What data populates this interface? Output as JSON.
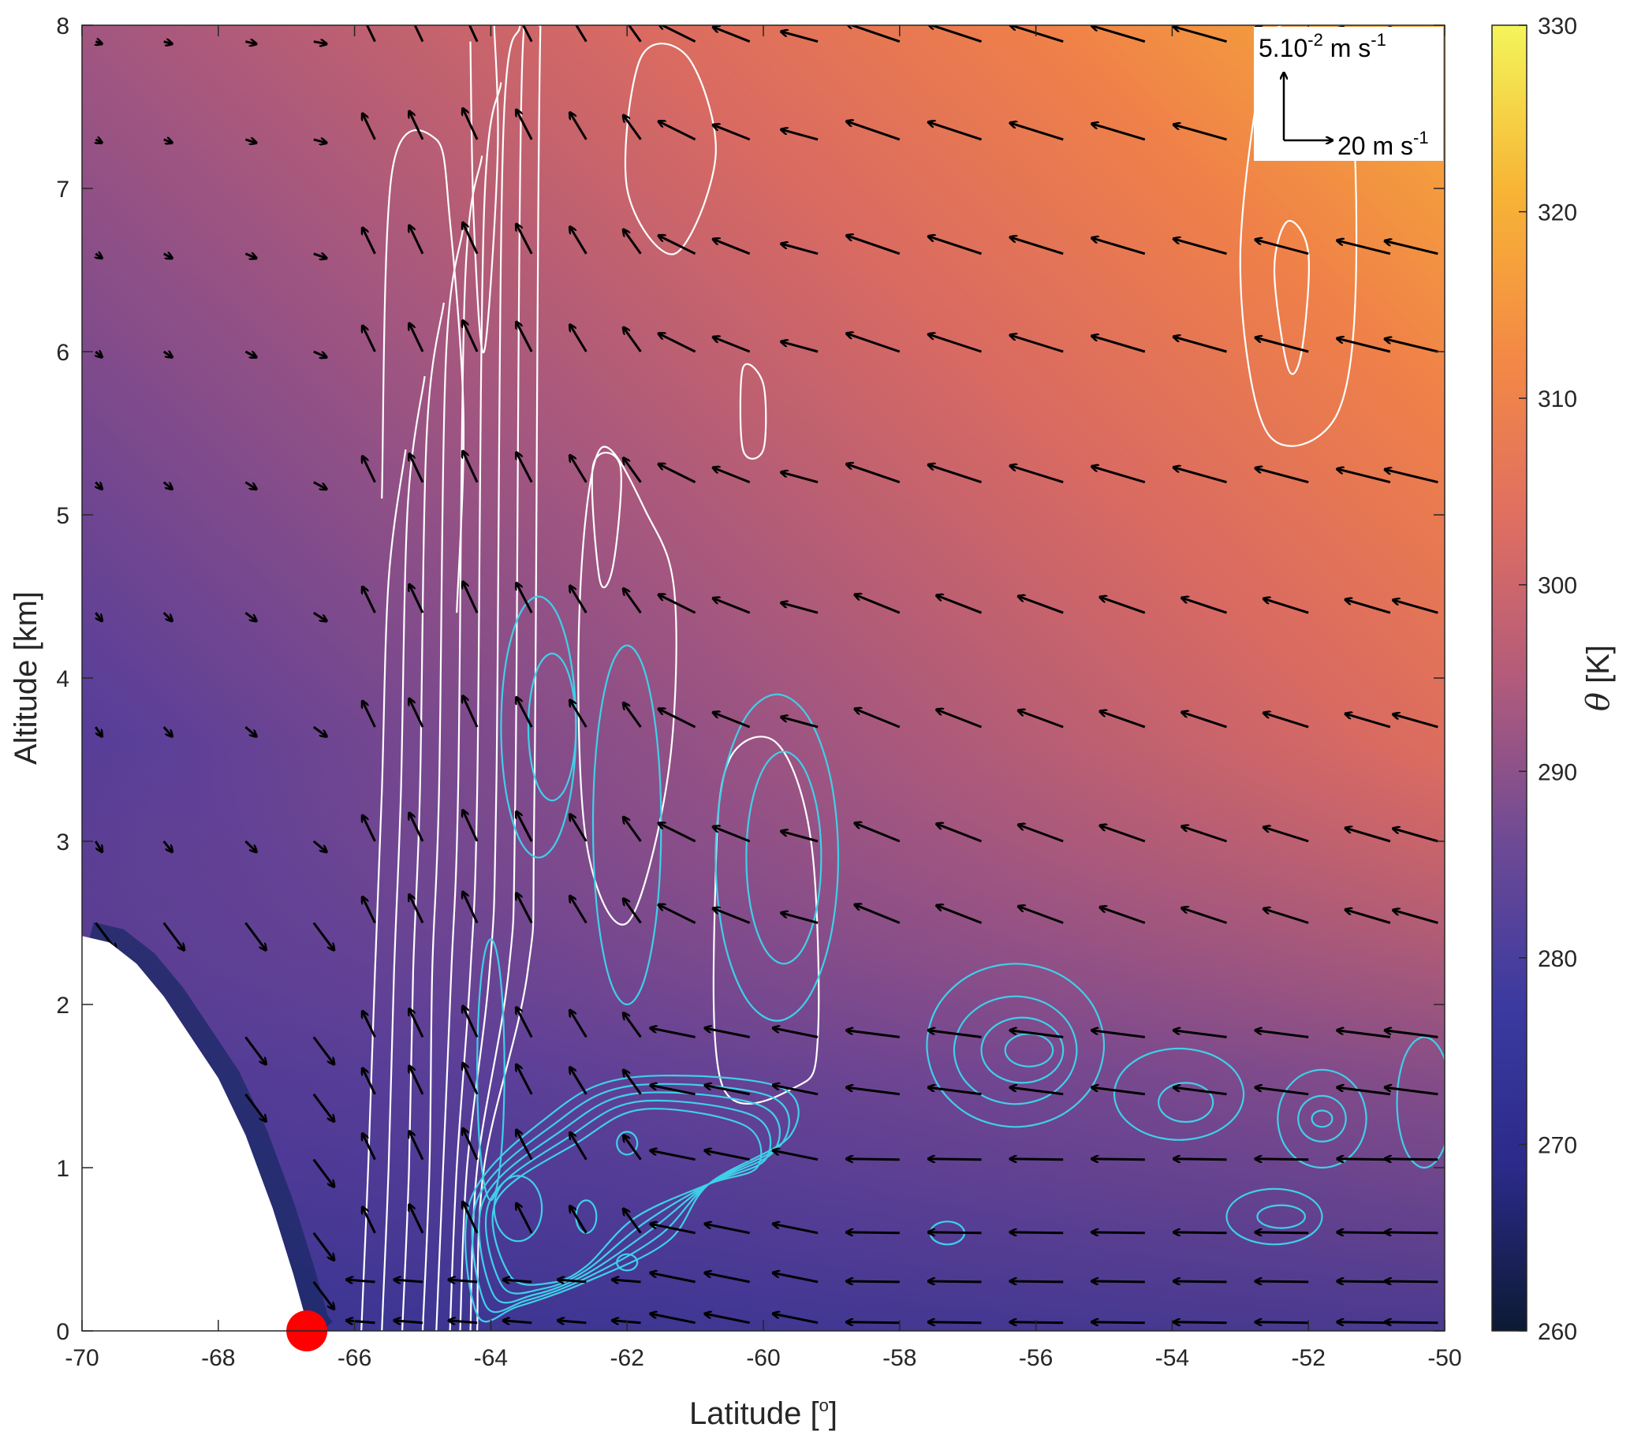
{
  "chart_data": {
    "type": "heatmap",
    "title": "",
    "xlabel": "Latitude [",
    "xlabel_sup": "o",
    "xlabel_end": "]",
    "ylabel": "Altitude [km]",
    "xlim": [
      -70,
      -50
    ],
    "ylim": [
      0,
      8
    ],
    "x_ticks": [
      -70,
      -68,
      -66,
      -64,
      -62,
      -60,
      -58,
      -56,
      -54,
      -52,
      -50
    ],
    "y_ticks": [
      0,
      1,
      2,
      3,
      4,
      5,
      6,
      7,
      8
    ],
    "colorbar": {
      "label": "θ [K]",
      "label_symbol": "θ",
      "label_unit": " [K]",
      "range": [
        260,
        330
      ],
      "ticks": [
        260,
        270,
        280,
        290,
        300,
        310,
        320,
        330
      ],
      "colors": [
        "#0c1a33",
        "#2b2a8a",
        "#3b3aa0",
        "#6e4a95",
        "#b35b7b",
        "#e06f60",
        "#f48a45",
        "#f7b535",
        "#f4f55a"
      ]
    },
    "terrain": {
      "color": "#ffffff",
      "profile": [
        [
          -70,
          2.42
        ],
        [
          -69.6,
          2.38
        ],
        [
          -69.2,
          2.25
        ],
        [
          -68.8,
          2.05
        ],
        [
          -68.4,
          1.8
        ],
        [
          -68.0,
          1.55
        ],
        [
          -67.6,
          1.2
        ],
        [
          -67.2,
          0.75
        ],
        [
          -66.9,
          0.35
        ],
        [
          -66.7,
          0.05
        ],
        [
          -66.6,
          0
        ]
      ]
    },
    "red_marker": {
      "x": -66.7,
      "y": 0,
      "color": "#ff0000"
    },
    "wind_key": {
      "vertical_label": "5.10",
      "vertical_exp": "-2",
      "vertical_unit": " m s",
      "vertical_unit_exp": "-1",
      "horizontal_label": "20 m s",
      "horizontal_exp": "-1"
    },
    "contours": {
      "white_color": "#ffffff",
      "cyan_color": "#3fd0e8"
    }
  }
}
